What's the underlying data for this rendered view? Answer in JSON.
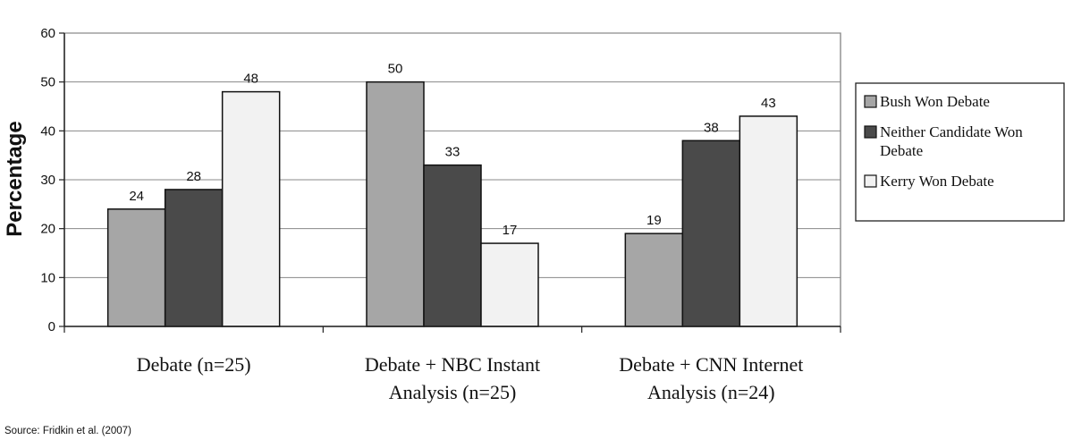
{
  "chart_data": {
    "type": "bar",
    "title": "",
    "ylabel": "Percentage",
    "xlabel": "",
    "ylim": [
      0,
      60
    ],
    "yticks": [
      0,
      10,
      20,
      30,
      40,
      50,
      60
    ],
    "grid": true,
    "legend_position": "right",
    "categories": [
      [
        "Debate (n=25)"
      ],
      [
        "Debate + NBC Instant",
        "Analysis (n=25)"
      ],
      [
        "Debate + CNN Internet",
        "Analysis (n=24)"
      ]
    ],
    "series": [
      {
        "name": "Bush Won Debate",
        "legend_lines": [
          "Bush Won Debate"
        ],
        "color": "#a6a6a6",
        "values": [
          24,
          50,
          19
        ]
      },
      {
        "name": "Neither Candidate Won Debate",
        "legend_lines": [
          "Neither Candidate Won",
          "Debate"
        ],
        "color": "#4a4a4a",
        "values": [
          28,
          33,
          38
        ]
      },
      {
        "name": "Kerry Won Debate",
        "legend_lines": [
          "Kerry Won Debate"
        ],
        "color": "#f2f2f2",
        "values": [
          48,
          17,
          43
        ]
      }
    ]
  },
  "source": "Source: Fridkin et al. (2007)"
}
